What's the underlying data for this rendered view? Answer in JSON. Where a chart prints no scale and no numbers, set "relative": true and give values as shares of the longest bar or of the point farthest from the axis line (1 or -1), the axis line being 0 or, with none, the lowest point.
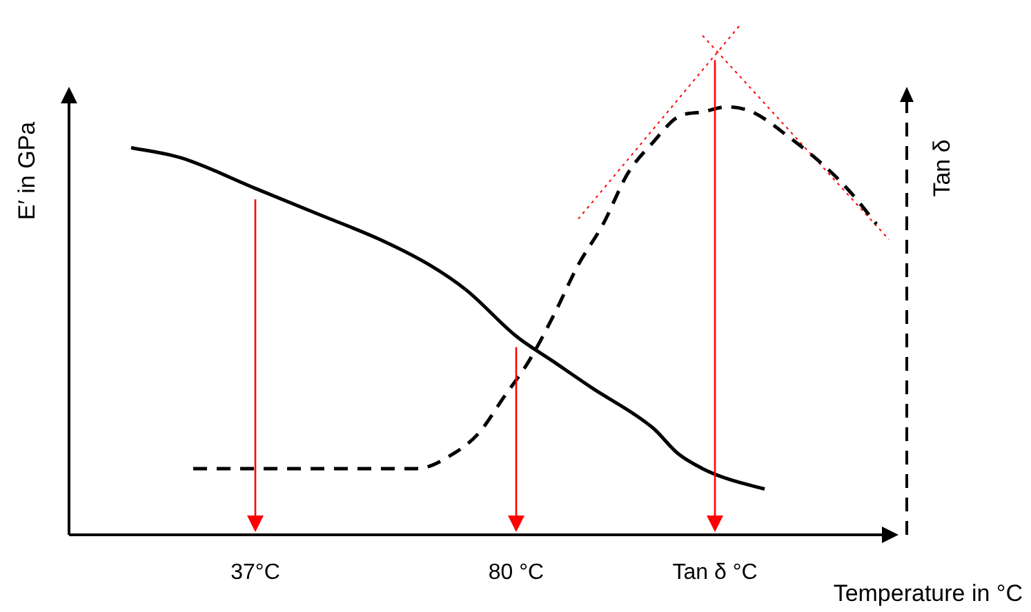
{
  "chart_data": {
    "type": "line",
    "relative": true,
    "xlabel": "Temperature in °C",
    "ylabel": "E′ in GPa",
    "y2label": "Tan δ",
    "legend": false,
    "grid": false,
    "marker": "none",
    "categories": [
      null,
      null,
      null,
      null,
      null,
      null,
      null,
      null,
      null,
      null,
      null,
      null,
      null,
      null,
      null,
      "37°C",
      null,
      null,
      null,
      null,
      null,
      null,
      null,
      null,
      null,
      null,
      null,
      null,
      null,
      null,
      null,
      null,
      null,
      null,
      null,
      null,
      "80 °C",
      null,
      null,
      null,
      null,
      null,
      null,
      null,
      null,
      null,
      null,
      null,
      null,
      null,
      null,
      null,
      "Tan δ °C",
      null,
      null,
      null,
      null,
      null,
      null,
      null,
      null,
      null,
      null,
      null,
      null,
      null,
      null,
      null
    ],
    "series": [
      {
        "color": "#000000",
        "line_style": "solid",
        "values": [
          null,
          null,
          null,
          null,
          null,
          0.76,
          null,
          null,
          null,
          0.74,
          null,
          null,
          null,
          null,
          null,
          0.68,
          null,
          null,
          null,
          null,
          0.63,
          null,
          null,
          null,
          null,
          0.58,
          null,
          null,
          null,
          0.53,
          null,
          null,
          0.48,
          null,
          null,
          null,
          0.39,
          null,
          null,
          0.34,
          null,
          null,
          0.29,
          null,
          null,
          null,
          null,
          0.21,
          null,
          0.16,
          null,
          0.13,
          null,
          0.11,
          null,
          null,
          0.09,
          null,
          null,
          null,
          null,
          null,
          null,
          null,
          null,
          null,
          null,
          null
        ]
      },
      {
        "color": "#000000",
        "line_style": "dashed",
        "axis": "y2",
        "values": [
          null,
          null,
          null,
          null,
          null,
          null,
          null,
          null,
          null,
          null,
          0.13,
          null,
          null,
          null,
          null,
          null,
          null,
          null,
          null,
          null,
          0.13,
          null,
          null,
          null,
          null,
          null,
          null,
          null,
          0.13,
          null,
          null,
          0.16,
          null,
          0.2,
          null,
          0.27,
          null,
          0.34,
          null,
          0.43,
          null,
          0.53,
          null,
          0.61,
          null,
          0.71,
          null,
          0.77,
          null,
          0.82,
          null,
          0.83,
          null,
          0.84,
          null,
          0.83,
          null,
          null,
          0.78,
          null,
          null,
          0.72,
          null,
          0.67,
          null,
          0.61,
          null,
          null
        ]
      },
      {
        "color": "#ff0000",
        "line_style": "dotted",
        "values": [
          null,
          null,
          null,
          null,
          null,
          null,
          null,
          null,
          null,
          null,
          null,
          null,
          null,
          null,
          null,
          null,
          null,
          null,
          null,
          null,
          null,
          null,
          null,
          null,
          null,
          null,
          null,
          null,
          null,
          null,
          null,
          null,
          null,
          null,
          null,
          null,
          null,
          null,
          null,
          null,
          null,
          0.62,
          null,
          null,
          null,
          null,
          null,
          null,
          null,
          null,
          null,
          null,
          null,
          null,
          1,
          null,
          null,
          null,
          null,
          null,
          null,
          null,
          null,
          null,
          null,
          null,
          null,
          null
        ]
      },
      {
        "color": "#ff0000",
        "line_style": "dotted",
        "values": [
          null,
          null,
          null,
          null,
          null,
          null,
          null,
          null,
          null,
          null,
          null,
          null,
          null,
          null,
          null,
          null,
          null,
          null,
          null,
          null,
          null,
          null,
          null,
          null,
          null,
          null,
          null,
          null,
          null,
          null,
          null,
          null,
          null,
          null,
          null,
          null,
          null,
          null,
          null,
          null,
          null,
          null,
          null,
          null,
          null,
          null,
          null,
          null,
          null,
          null,
          null,
          0.98,
          null,
          null,
          null,
          null,
          null,
          null,
          null,
          null,
          null,
          null,
          null,
          null,
          null,
          null,
          0.58,
          null
        ]
      }
    ],
    "ref_lines": [
      {
        "axis": "x",
        "value": "37°C",
        "color": "#ff0000"
      },
      {
        "axis": "x",
        "value": "80 °C",
        "color": "#ff0000"
      },
      {
        "axis": "x",
        "value": "Tan δ °C",
        "color": "#ff0000"
      }
    ]
  }
}
